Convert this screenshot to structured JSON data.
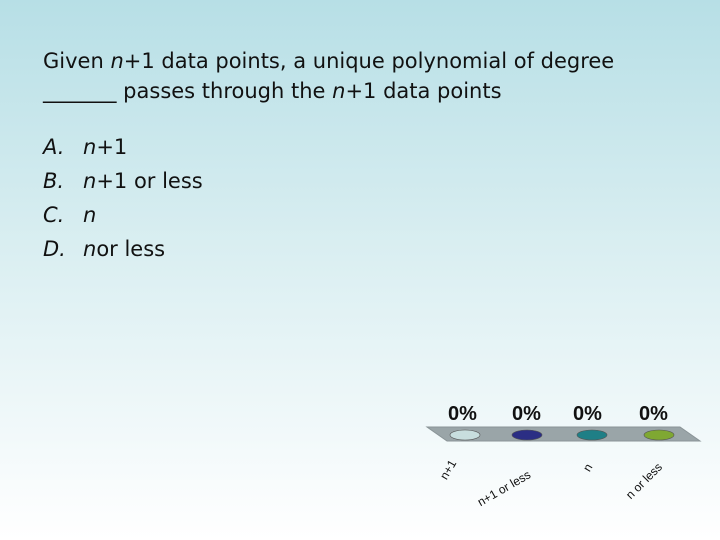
{
  "question": {
    "line1_pre": "Given ",
    "var": "n",
    "line1_post": "+1 data points, a unique polynomial of degree",
    "line2_blank": "_______",
    "line2_mid": " passes through the ",
    "line2_var": "n",
    "line2_post": "+1 data points"
  },
  "options": [
    {
      "letter": "A.",
      "var": "n",
      "rest": "+1"
    },
    {
      "letter": "B.",
      "var": "n",
      "rest": "+1 or less"
    },
    {
      "letter": "C.",
      "var": "n",
      "rest": ""
    },
    {
      "letter": "D.",
      "var": "n",
      "rest": " or less"
    }
  ],
  "chart_data": {
    "type": "bar",
    "categories": [
      "n+1",
      "n+1 or less",
      "n",
      "n or less"
    ],
    "values": [
      0,
      0,
      0,
      0
    ],
    "value_labels": [
      "0%",
      "0%",
      "0%",
      "0%"
    ],
    "colors": [
      "#c8dede",
      "#2b2e84",
      "#1f7f86",
      "#7fa832"
    ],
    "ylim": [
      0,
      100
    ]
  }
}
